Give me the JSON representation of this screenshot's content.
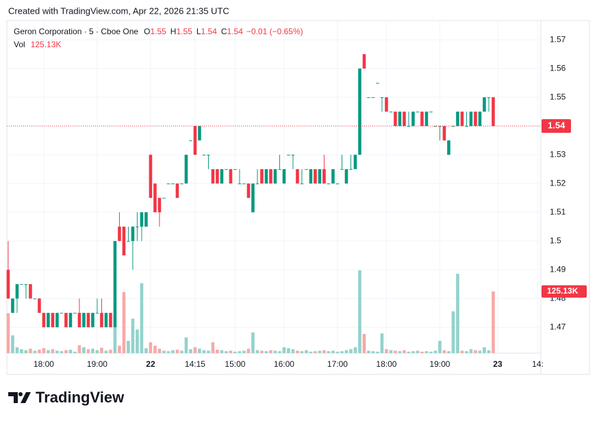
{
  "header": {
    "credit": "Created with TradingView.com, Apr 22, 2026 21:35 UTC",
    "brand": "TradingView"
  },
  "chart_data": {
    "type": "candlestick",
    "symbol": "Geron Corporation · 5 · Cboe One",
    "ohlc_legend": [
      {
        "key": "O",
        "text": "1.55"
      },
      {
        "key": "H",
        "text": "1.55"
      },
      {
        "key": "L",
        "text": "1.54"
      },
      {
        "key": "C",
        "text": "1.54"
      }
    ],
    "change": "−0.01 (−0.65%)",
    "volume_legend": {
      "key": "Vol",
      "text": "125.13K"
    },
    "up_color": "#089981",
    "down_color": "#f23645",
    "volume_up_color": "#92d2cc",
    "volume_down_color": "#f7a9a7",
    "grid": true,
    "xlim": [
      -0.3,
      119.7
    ],
    "xticks": [
      {
        "value": 8,
        "label": "18:00"
      },
      {
        "value": 20,
        "label": "19:00"
      },
      {
        "value": 32,
        "label": "22"
      },
      {
        "value": 42,
        "label": "14:15"
      },
      {
        "value": 51,
        "label": "15:00"
      },
      {
        "value": 62,
        "label": "16:00"
      },
      {
        "value": 74,
        "label": "17:00"
      },
      {
        "value": 85,
        "label": "18:00"
      },
      {
        "value": 97,
        "label": "19:00"
      },
      {
        "value": 110,
        "label": "23"
      },
      {
        "value": 119,
        "label": "14:"
      }
    ],
    "ylim": [
      1.461,
      1.5767
    ],
    "yticks": [
      1.47,
      1.48,
      1.49,
      1.5,
      1.51,
      1.52,
      1.53,
      1.54,
      1.55,
      1.56,
      1.57
    ],
    "volume_lim": [
      0,
      675000
    ],
    "last_price": 1.54,
    "last_volume": {
      "value": 125130,
      "label": "125.13K"
    },
    "open": [
      1.49,
      1.475,
      1.48,
      1.485,
      1.485,
      1.485,
      1.48,
      1.48,
      1.475,
      1.47,
      1.475,
      1.47,
      1.475,
      1.475,
      1.47,
      1.475,
      1.475,
      1.47,
      1.475,
      1.47,
      1.475,
      1.475,
      1.47,
      1.475,
      1.47,
      1.505,
      1.505,
      1.5,
      1.5,
      1.505,
      1.505,
      1.505,
      1.53,
      1.52,
      1.515,
      1.515,
      1.52,
      1.52,
      1.52,
      1.52,
      1.52,
      1.535,
      1.54,
      1.535,
      1.53,
      1.53,
      1.525,
      1.525,
      1.52,
      1.525,
      1.525,
      1.525,
      1.52,
      1.52,
      1.52,
      1.51,
      1.52,
      1.525,
      1.52,
      1.525,
      1.52,
      1.525,
      1.52,
      1.53,
      1.53,
      1.525,
      1.52,
      1.525,
      1.52,
      1.525,
      1.52,
      1.525,
      1.52,
      1.52,
      1.52,
      1.525,
      1.52,
      1.525,
      1.525,
      1.53,
      1.565,
      1.55,
      1.55,
      1.555,
      1.55,
      1.55,
      1.545,
      1.545,
      1.54,
      1.545,
      1.54,
      1.54,
      1.545,
      1.545,
      1.54,
      1.545,
      1.54,
      1.54,
      1.54,
      1.53,
      1.54,
      1.54,
      1.545,
      1.54,
      1.54,
      1.545,
      1.54,
      1.545,
      1.55,
      1.55
    ],
    "high": [
      1.5,
      1.48,
      1.485,
      1.485,
      1.485,
      1.485,
      1.48,
      1.48,
      1.475,
      1.475,
      1.475,
      1.475,
      1.475,
      1.475,
      1.475,
      1.475,
      1.48,
      1.475,
      1.475,
      1.475,
      1.48,
      1.48,
      1.475,
      1.475,
      1.5,
      1.51,
      1.505,
      1.505,
      1.505,
      1.51,
      1.51,
      1.51,
      1.53,
      1.52,
      1.515,
      1.515,
      1.52,
      1.52,
      1.52,
      1.52,
      1.53,
      1.535,
      1.54,
      1.54,
      1.53,
      1.53,
      1.525,
      1.525,
      1.525,
      1.525,
      1.525,
      1.525,
      1.525,
      1.52,
      1.52,
      1.52,
      1.525,
      1.525,
      1.525,
      1.525,
      1.525,
      1.53,
      1.525,
      1.53,
      1.53,
      1.525,
      1.525,
      1.525,
      1.525,
      1.525,
      1.525,
      1.53,
      1.52,
      1.525,
      1.52,
      1.53,
      1.525,
      1.53,
      1.53,
      1.56,
      1.565,
      1.55,
      1.55,
      1.555,
      1.55,
      1.55,
      1.545,
      1.545,
      1.545,
      1.545,
      1.545,
      1.545,
      1.545,
      1.545,
      1.545,
      1.545,
      1.54,
      1.54,
      1.54,
      1.535,
      1.54,
      1.545,
      1.545,
      1.545,
      1.545,
      1.545,
      1.545,
      1.55,
      1.55,
      1.55
    ],
    "low": [
      1.48,
      1.475,
      1.475,
      1.485,
      1.48,
      1.48,
      1.48,
      1.475,
      1.47,
      1.47,
      1.47,
      1.47,
      1.475,
      1.47,
      1.47,
      1.475,
      1.47,
      1.47,
      1.47,
      1.47,
      1.475,
      1.47,
      1.47,
      1.47,
      1.47,
      1.5,
      1.495,
      1.5,
      1.49,
      1.5,
      1.5,
      1.505,
      1.515,
      1.51,
      1.505,
      1.515,
      1.52,
      1.52,
      1.515,
      1.52,
      1.52,
      1.535,
      1.53,
      1.535,
      1.53,
      1.525,
      1.52,
      1.52,
      1.52,
      1.525,
      1.52,
      1.525,
      1.52,
      1.52,
      1.515,
      1.51,
      1.52,
      1.52,
      1.52,
      1.52,
      1.52,
      1.525,
      1.52,
      1.53,
      1.525,
      1.52,
      1.52,
      1.525,
      1.52,
      1.52,
      1.52,
      1.52,
      1.52,
      1.52,
      1.52,
      1.525,
      1.52,
      1.525,
      1.525,
      1.53,
      1.56,
      1.55,
      1.55,
      1.555,
      1.545,
      1.545,
      1.545,
      1.54,
      1.54,
      1.54,
      1.54,
      1.54,
      1.545,
      1.54,
      1.54,
      1.545,
      1.54,
      1.535,
      1.535,
      1.53,
      1.54,
      1.54,
      1.54,
      1.54,
      1.54,
      1.54,
      1.54,
      1.545,
      1.545,
      1.54
    ],
    "close": [
      1.48,
      1.48,
      1.485,
      1.485,
      1.485,
      1.48,
      1.48,
      1.475,
      1.47,
      1.475,
      1.47,
      1.475,
      1.475,
      1.47,
      1.475,
      1.475,
      1.47,
      1.475,
      1.47,
      1.475,
      1.475,
      1.47,
      1.475,
      1.47,
      1.5,
      1.5,
      1.495,
      1.5,
      1.505,
      1.505,
      1.51,
      1.51,
      1.515,
      1.51,
      1.51,
      1.515,
      1.52,
      1.52,
      1.515,
      1.52,
      1.53,
      1.535,
      1.53,
      1.54,
      1.53,
      1.53,
      1.52,
      1.52,
      1.525,
      1.525,
      1.52,
      1.525,
      1.52,
      1.52,
      1.515,
      1.52,
      1.52,
      1.52,
      1.525,
      1.52,
      1.525,
      1.525,
      1.525,
      1.53,
      1.53,
      1.52,
      1.52,
      1.525,
      1.525,
      1.52,
      1.525,
      1.52,
      1.52,
      1.525,
      1.52,
      1.525,
      1.525,
      1.525,
      1.53,
      1.56,
      1.56,
      1.55,
      1.55,
      1.555,
      1.55,
      1.545,
      1.545,
      1.54,
      1.545,
      1.54,
      1.54,
      1.545,
      1.545,
      1.54,
      1.545,
      1.545,
      1.54,
      1.54,
      1.535,
      1.535,
      1.54,
      1.545,
      1.54,
      1.54,
      1.545,
      1.54,
      1.545,
      1.55,
      1.55,
      1.54
    ],
    "volume": [
      81000,
      36000,
      12000,
      8000,
      6000,
      9000,
      5000,
      7000,
      10000,
      6000,
      8000,
      5000,
      4000,
      6000,
      7000,
      3000,
      16000,
      12000,
      8000,
      9000,
      6000,
      11000,
      5000,
      7000,
      53000,
      15000,
      124000,
      25000,
      70000,
      48000,
      142000,
      10000,
      22000,
      15000,
      9000,
      5000,
      4000,
      6000,
      7000,
      5000,
      32000,
      8000,
      12000,
      9000,
      6000,
      5000,
      22000,
      7000,
      6000,
      4000,
      5000,
      3000,
      4000,
      5000,
      9000,
      42000,
      6000,
      5000,
      4000,
      6000,
      5000,
      4000,
      12000,
      10000,
      8000,
      5000,
      4000,
      6000,
      3000,
      4000,
      5000,
      6000,
      4000,
      5000,
      3000,
      4000,
      6000,
      8000,
      12000,
      168000,
      39000,
      5000,
      4000,
      3000,
      40000,
      8000,
      6000,
      5000,
      4000,
      6000,
      3000,
      4000,
      5000,
      3000,
      4000,
      3000,
      5000,
      25000,
      6000,
      4000,
      85000,
      161000,
      5000,
      4000,
      8000,
      6000,
      5000,
      12000,
      6000,
      125130
    ]
  }
}
